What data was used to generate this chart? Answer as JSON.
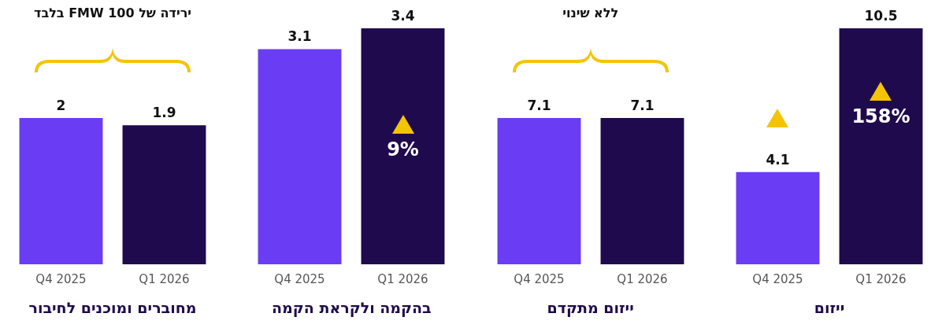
{
  "chart_data": [
    {
      "type": "bar",
      "title": "ייזום",
      "categories": [
        "Q4 2025",
        "Q1 2026"
      ],
      "values": [
        4.1,
        10.5
      ],
      "colors": [
        "#6a3df5",
        "#1f0a4d"
      ],
      "data_labels": true,
      "legend": false,
      "grid": false,
      "tick_labels": "x",
      "annotations": [
        "158%"
      ]
    },
    {
      "type": "bar",
      "title": "ייזום מתקדם",
      "categories": [
        "Q4 2025",
        "Q1 2026"
      ],
      "values": [
        7.1,
        7.1
      ],
      "colors": [
        "#6a3df5",
        "#1f0a4d"
      ],
      "data_labels": true,
      "legend": false,
      "grid": false,
      "tick_labels": "x",
      "annotations": [
        "ללא שינוי"
      ]
    },
    {
      "type": "bar",
      "title": "בהקמה ולקראת הקמה",
      "categories": [
        "Q4 2025",
        "Q1 2026"
      ],
      "values": [
        3.1,
        3.4
      ],
      "colors": [
        "#6a3df5",
        "#1f0a4d"
      ],
      "data_labels": true,
      "legend": false,
      "grid": false,
      "tick_labels": "x",
      "annotations": [
        "9%"
      ]
    },
    {
      "type": "bar",
      "title": "מחוברים ומוכנים לחיבור",
      "categories": [
        "Q4 2025",
        "Q1 2026"
      ],
      "values": [
        2,
        1.9
      ],
      "colors": [
        "#6a3df5",
        "#1f0a4d"
      ],
      "data_labels": true,
      "legend": false,
      "grid": false,
      "tick_labels": "x",
      "annotations": [
        "ירידה של FMW 100 בלבד"
      ]
    }
  ]
}
